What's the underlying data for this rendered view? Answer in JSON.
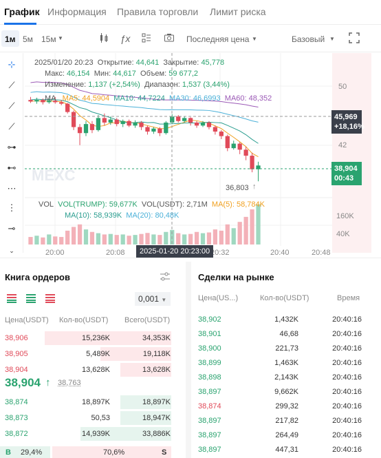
{
  "tabs": [
    {
      "label": "График",
      "active": true
    },
    {
      "label": "Информация",
      "active": false
    },
    {
      "label": "Правила торговли",
      "active": false
    },
    {
      "label": "Лимит риска",
      "active": false
    }
  ],
  "toolbar": {
    "timeframes": [
      "1м",
      "5м",
      "15м"
    ],
    "price_type": "Последняя цена",
    "view_mode": "Базовый"
  },
  "chart_legend": {
    "datetime": "2025/01/20 20:23",
    "open_label": "Открытие:",
    "open": "44,641",
    "close_label": "Закрытие:",
    "close": "45,778",
    "high_label": "Макс:",
    "high": "46,154",
    "low_label": "Мин:",
    "low": "44,617",
    "volume_label": "Объем:",
    "volume": "59 677,2",
    "change_label": "Изменение:",
    "change": "1,137 (+2,54%)",
    "range_label": "Диапазон:",
    "range": "1,537 (3,44%)",
    "ma_label": "MA",
    "ma5": "MA5: 44,5904",
    "ma10": "MA10: 44,7224",
    "ma30": "MA30: 46,6993",
    "ma60": "MA60: 48,352",
    "vol_label": "VOL",
    "vol_trump": "VOL(TRUMP): 59,677K",
    "vol_usdt": "VOL(USDT): 2,71M",
    "vol_ma5": "MA(5): 58,784K",
    "vol_ma10": "MA(10): 58,939K",
    "vol_ma20": "MA(20): 80,48K"
  },
  "chart_axis": {
    "y_ticks": [
      "50",
      "42"
    ],
    "vol_ticks": [
      "160K",
      "40K"
    ],
    "x_ticks": [
      "20:00",
      "20:08",
      "20:32",
      "20:40",
      "20:48"
    ],
    "crosshair_time": "2025-01-20 20:23:00",
    "high_price": "45,969",
    "high_change": "+18,16%",
    "last_price": "38,904",
    "countdown": "00:43",
    "low_marker": "36,803",
    "watermark": "MEXC"
  },
  "colors": {
    "up": "#2aa36f",
    "down": "#e04a59",
    "accent": "#1a73e8"
  },
  "chart_data": {
    "type": "candlestick",
    "x_ticks": [
      "20:00",
      "20:08",
      "20:32",
      "20:40",
      "20:48"
    ],
    "ylim": [
      36,
      52
    ],
    "candles": [
      [
        47.6,
        47.4,
        48.0,
        47.2
      ],
      [
        47.4,
        47.6,
        47.9,
        47.1
      ],
      [
        47.6,
        47.3,
        47.8,
        47.0
      ],
      [
        47.3,
        47.5,
        47.8,
        47.1
      ],
      [
        47.5,
        47.3,
        48.0,
        47.1
      ],
      [
        47.3,
        47.1,
        47.6,
        46.9
      ],
      [
        47.1,
        46.0,
        47.2,
        45.8
      ],
      [
        46.0,
        44.0,
        46.2,
        43.6
      ],
      [
        44.0,
        43.2,
        44.4,
        41.6
      ],
      [
        43.2,
        44.4,
        44.8,
        42.8
      ],
      [
        44.4,
        43.6,
        44.8,
        43.2
      ],
      [
        43.6,
        45.2,
        45.6,
        43.4
      ],
      [
        45.2,
        44.6,
        45.8,
        44.2
      ],
      [
        44.6,
        45.0,
        45.4,
        44.3
      ],
      [
        45.0,
        44.4,
        45.2,
        44.1
      ],
      [
        44.4,
        44.8,
        45.0,
        44.0
      ],
      [
        44.8,
        44.2,
        45.0,
        44.0
      ],
      [
        44.2,
        44.6,
        44.9,
        43.9
      ],
      [
        44.6,
        44.0,
        44.8,
        43.6
      ],
      [
        44.0,
        43.4,
        44.2,
        43.0
      ],
      [
        43.4,
        43.8,
        44.0,
        43.1
      ],
      [
        43.8,
        43.2,
        44.0,
        42.8
      ],
      [
        43.2,
        44.6,
        44.8,
        43.0
      ],
      [
        44.6,
        45.4,
        45.7,
        44.4
      ],
      [
        45.4,
        44.8,
        45.6,
        44.6
      ],
      [
        44.8,
        45.2,
        45.4,
        44.6
      ],
      [
        45.2,
        44.6,
        45.3,
        44.2
      ],
      [
        44.6,
        44.2,
        44.8,
        43.9
      ],
      [
        44.2,
        44.6,
        44.8,
        44.0
      ],
      [
        44.6,
        44.0,
        44.8,
        43.7
      ],
      [
        44.0,
        43.4,
        44.2,
        43.0
      ],
      [
        43.4,
        42.8,
        43.6,
        42.4
      ],
      [
        42.8,
        41.2,
        43.0,
        40.8
      ],
      [
        41.2,
        41.8,
        42.2,
        41.0
      ],
      [
        41.8,
        41.0,
        42.0,
        40.4
      ],
      [
        41.0,
        40.2,
        41.4,
        39.6
      ],
      [
        40.2,
        38.4,
        40.6,
        38.0
      ],
      [
        38.4,
        38.9,
        39.4,
        36.8
      ]
    ],
    "volumes": [
      30,
      35,
      28,
      40,
      32,
      30,
      55,
      70,
      80,
      60,
      50,
      45,
      40,
      42,
      38,
      40,
      35,
      38,
      42,
      46,
      40,
      38,
      50,
      58,
      45,
      40,
      42,
      50,
      45,
      48,
      60,
      55,
      80,
      65,
      90,
      110,
      140,
      160
    ]
  },
  "orderbook": {
    "title": "Книга ордеров",
    "precision": "0,001",
    "headers": {
      "price": "Цена(USDT)",
      "qty": "Кол-во(USDT)",
      "total": "Всего(USDT)"
    },
    "asks": [
      {
        "price": "38,906",
        "qty": "15,236K",
        "total": "34,353K",
        "depth": 1.0
      },
      {
        "price": "38,905",
        "qty": "5,489K",
        "total": "19,118K",
        "depth": 0.56
      },
      {
        "price": "38,904",
        "qty": "13,628K",
        "total": "13,628K",
        "depth": 0.4
      }
    ],
    "last_price": "38,904",
    "mark_price": "38,763",
    "bids": [
      {
        "price": "38,874",
        "qty": "18,897K",
        "total": "18,897K",
        "depth": 0.4
      },
      {
        "price": "38,873",
        "qty": "50,53",
        "total": "18,947K",
        "depth": 0.4
      },
      {
        "price": "38,872",
        "qty": "14,939K",
        "total": "33,886K",
        "depth": 0.72
      }
    ],
    "buy_label": "B",
    "buy_pct": "29,4%",
    "sell_pct": "70,6%",
    "sell_label": "S",
    "buy_ratio": 0.294
  },
  "trades": {
    "title": "Сделки на рынке",
    "headers": {
      "price": "Цена(US...)",
      "qty": "Кол-во(USDT)",
      "time": "Время"
    },
    "rows": [
      {
        "price": "38,902",
        "qty": "1,432K",
        "time": "20:40:16",
        "side": "buy"
      },
      {
        "price": "38,901",
        "qty": "46,68",
        "time": "20:40:16",
        "side": "buy"
      },
      {
        "price": "38,900",
        "qty": "221,73",
        "time": "20:40:16",
        "side": "buy"
      },
      {
        "price": "38,899",
        "qty": "1,463K",
        "time": "20:40:16",
        "side": "buy"
      },
      {
        "price": "38,898",
        "qty": "2,143K",
        "time": "20:40:16",
        "side": "buy"
      },
      {
        "price": "38,897",
        "qty": "9,662K",
        "time": "20:40:16",
        "side": "buy"
      },
      {
        "price": "38,874",
        "qty": "299,32",
        "time": "20:40:16",
        "side": "sell"
      },
      {
        "price": "38,897",
        "qty": "217,82",
        "time": "20:40:16",
        "side": "buy"
      },
      {
        "price": "38,897",
        "qty": "264,49",
        "time": "20:40:16",
        "side": "buy"
      },
      {
        "price": "38,897",
        "qty": "447,31",
        "time": "20:40:16",
        "side": "buy"
      }
    ]
  }
}
